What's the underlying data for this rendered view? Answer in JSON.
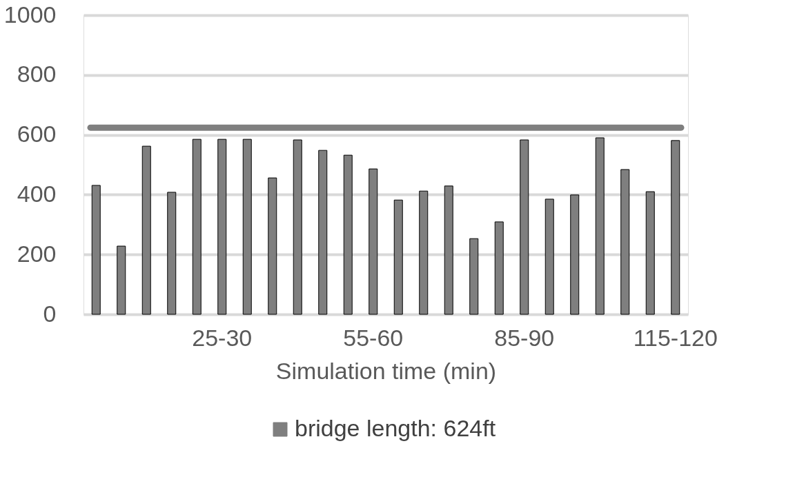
{
  "chart_data": {
    "type": "bar",
    "xlabel": "Simulation time (min)",
    "categories": [
      null,
      null,
      null,
      null,
      null,
      "25-30",
      null,
      null,
      null,
      null,
      null,
      "55-60",
      null,
      null,
      null,
      null,
      null,
      "85-90",
      null,
      null,
      null,
      null,
      null,
      "115-120"
    ],
    "values": [
      431,
      228,
      562,
      408,
      585,
      585,
      585,
      456,
      583,
      548,
      532,
      486,
      382,
      412,
      429,
      253,
      309,
      583,
      385,
      399,
      590,
      484,
      410,
      581
    ],
    "color": "#7f7f7f",
    "ylim": [
      0,
      1000
    ],
    "yticks": [
      0,
      200,
      400,
      600,
      800,
      1000
    ],
    "grid": "y",
    "ref_lines": [
      {
        "axis": "y",
        "value": 624,
        "label": "bridge length: 624ft",
        "color": "#7f7f7f"
      }
    ],
    "legend": "bottom"
  }
}
